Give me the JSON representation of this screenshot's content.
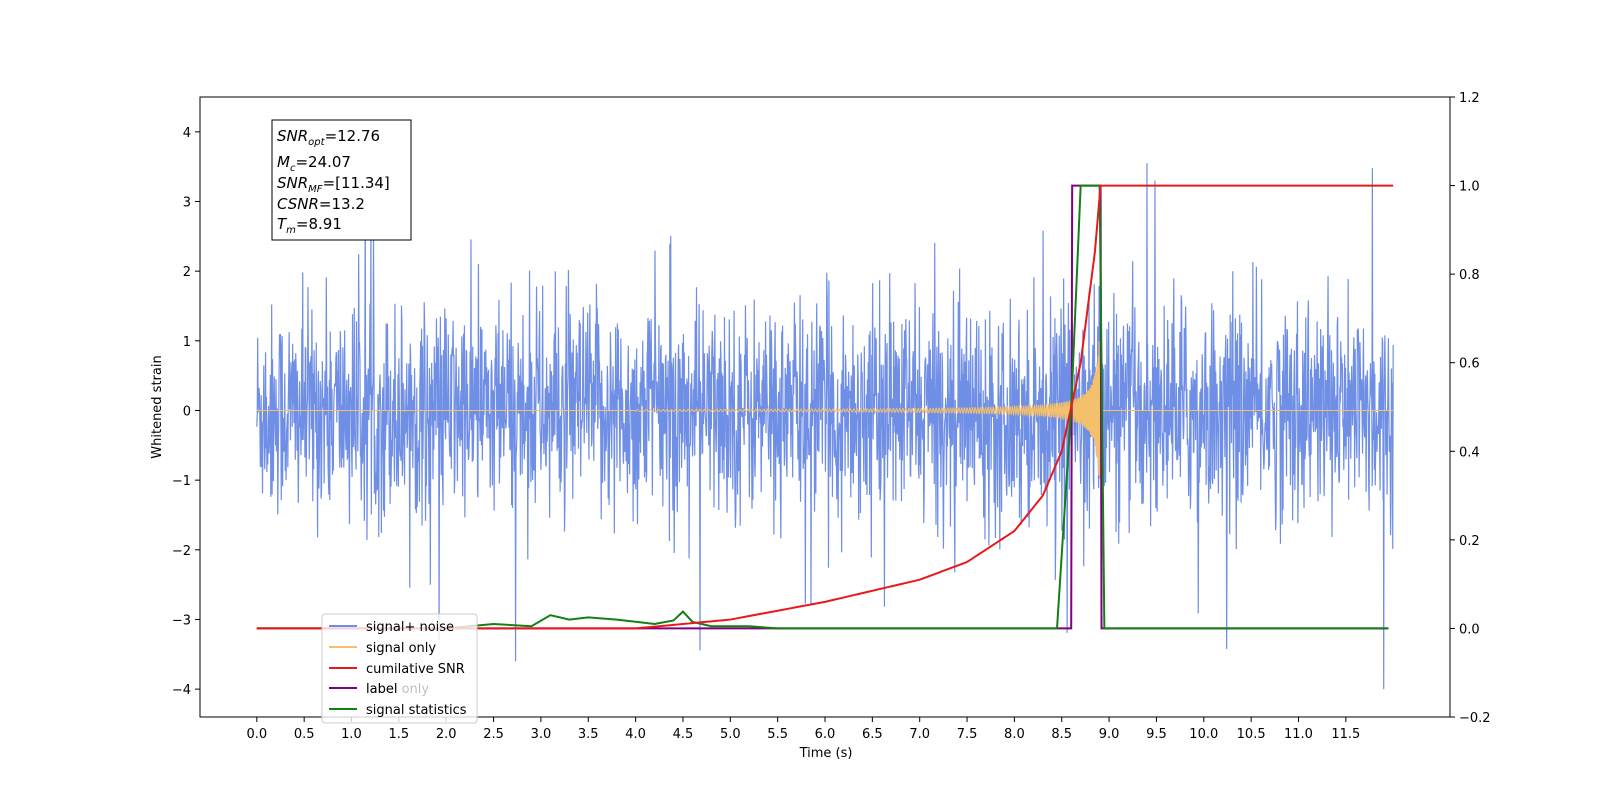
{
  "chart_data": {
    "type": "line",
    "xlabel": "Time (s)",
    "ylabel": "Whitened strain",
    "xlim": [
      -0.6,
      12.6
    ],
    "ylim": [
      -4.4,
      4.5
    ],
    "y2lim": [
      -0.2,
      1.2
    ],
    "x_ticks": [
      "0.0",
      "0.5",
      "1.0",
      "1.5",
      "2.0",
      "2.5",
      "3.0",
      "3.5",
      "4.0",
      "4.5",
      "5.0",
      "5.5",
      "6.0",
      "6.5",
      "7.0",
      "7.5",
      "8.0",
      "8.5",
      "9.0",
      "9.5",
      "10.0",
      "10.5",
      "11.0",
      "11.5"
    ],
    "y_ticks": [
      4,
      3,
      2,
      1,
      0,
      -1,
      -2,
      -3,
      -4
    ],
    "y_tick_labels": [
      "4",
      "3",
      "2",
      "1",
      "0",
      "−1",
      "−2",
      "−3",
      "−4"
    ],
    "y2_ticks": [
      "1.2",
      "1.0",
      "0.8",
      "0.6",
      "0.4",
      "0.2",
      "0.0",
      "−0.2"
    ],
    "legend_placement": "lower-left",
    "grid": false,
    "annotation": {
      "snr_opt": {
        "sym": "SNR",
        "sub": "opt",
        "value": "=12.76"
      },
      "mc": {
        "sym": "M",
        "sub": "c",
        "value": "=24.07"
      },
      "snr_mf": {
        "sym": "SNR",
        "sub": "MF",
        "value": "=[11.34]"
      },
      "csnr": {
        "sym": "CSNR",
        "value": "=13.2"
      },
      "tm": {
        "sym": "T",
        "sub": "m",
        "value": "=8.91"
      }
    },
    "series": [
      {
        "name": "signal+ noise",
        "color": "#6f8ee5",
        "axis": "left",
        "description_values": {
          "x_range": [
            0.0,
            12.0
          ],
          "typical_amplitude": [
            -1.7,
            1.7
          ],
          "peak_max": 3.55,
          "peak_min": -4.0
        }
      },
      {
        "name": "signal only",
        "color": "#f5c06b",
        "axis": "left",
        "description_values": {
          "chirp_start": 4.0,
          "chirp_end": 8.91,
          "peak_amplitude": 1.0
        }
      },
      {
        "name": "cumilative SNR",
        "color": "#e8191a",
        "axis": "right",
        "x": [
          0.0,
          4.0,
          5.0,
          6.0,
          7.0,
          7.5,
          8.0,
          8.3,
          8.5,
          8.7,
          8.85,
          8.91,
          12.0
        ],
        "y": [
          0.0,
          0.0,
          0.02,
          0.06,
          0.11,
          0.15,
          0.22,
          0.3,
          0.4,
          0.6,
          0.85,
          1.0,
          1.0
        ]
      },
      {
        "name": "label",
        "color": "#800080",
        "axis": "right",
        "x": [
          0.0,
          8.6,
          8.61,
          8.91,
          8.92,
          11.95
        ],
        "y": [
          0.0,
          0.0,
          1.0,
          1.0,
          0.0,
          0.0
        ]
      },
      {
        "name": "signal statistics",
        "color": "#138013",
        "axis": "right",
        "x": [
          0.0,
          2.0,
          2.5,
          2.9,
          3.1,
          3.3,
          3.5,
          3.8,
          4.0,
          4.2,
          4.4,
          4.5,
          4.6,
          4.8,
          5.2,
          5.5,
          8.45,
          8.6,
          8.7,
          8.9,
          8.95,
          11.95
        ],
        "y": [
          0.0,
          0.0,
          0.01,
          0.005,
          0.03,
          0.02,
          0.025,
          0.02,
          0.015,
          0.01,
          0.018,
          0.038,
          0.015,
          0.005,
          0.005,
          0.0,
          0.0,
          0.5,
          1.0,
          1.0,
          0.0,
          0.0
        ]
      }
    ],
    "legend": [
      "signal+ noise",
      "signal only",
      "cumilative SNR",
      "label",
      "signal statistics"
    ],
    "legend_overlap_text": "label only"
  }
}
